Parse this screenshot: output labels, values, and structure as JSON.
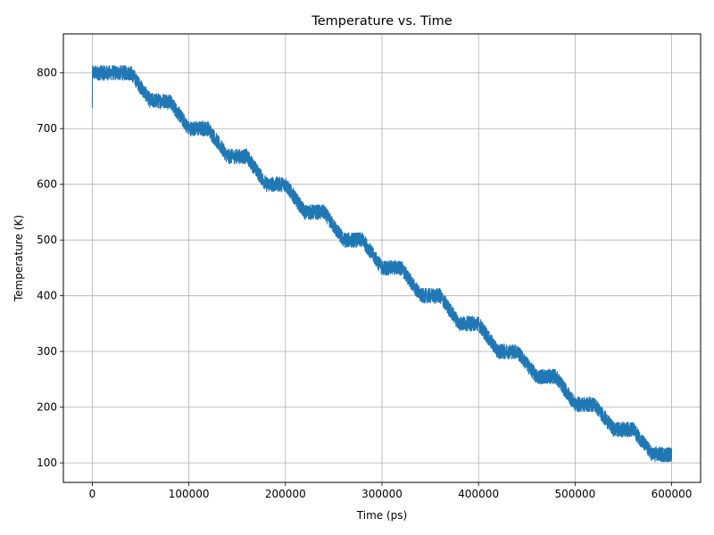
{
  "chart_data": {
    "type": "line",
    "title": "Temperature vs. Time",
    "xlabel": "Time (ps)",
    "ylabel": "Temperature (K)",
    "xlim": [
      -30000,
      630000
    ],
    "ylim": [
      65,
      870
    ],
    "xticks": [
      0,
      100000,
      200000,
      300000,
      400000,
      500000,
      600000
    ],
    "xtick_labels": [
      "0",
      "100000",
      "200000",
      "300000",
      "400000",
      "500000",
      "600000"
    ],
    "yticks": [
      100,
      200,
      300,
      400,
      500,
      600,
      700,
      800
    ],
    "ytick_labels": [
      "100",
      "200",
      "300",
      "400",
      "500",
      "600",
      "700",
      "800"
    ],
    "grid": true,
    "series_color": "#1f77b4",
    "series": [
      {
        "description_points": [
          {
            "x": 0,
            "y": 800
          },
          {
            "x": 40000,
            "y": 800
          },
          {
            "x": 60000,
            "y": 750
          },
          {
            "x": 80000,
            "y": 750
          },
          {
            "x": 100000,
            "y": 700
          },
          {
            "x": 120000,
            "y": 700
          },
          {
            "x": 140000,
            "y": 650
          },
          {
            "x": 160000,
            "y": 650
          },
          {
            "x": 180000,
            "y": 600
          },
          {
            "x": 200000,
            "y": 600
          },
          {
            "x": 220000,
            "y": 550
          },
          {
            "x": 240000,
            "y": 550
          },
          {
            "x": 260000,
            "y": 500
          },
          {
            "x": 280000,
            "y": 500
          },
          {
            "x": 300000,
            "y": 450
          },
          {
            "x": 320000,
            "y": 450
          },
          {
            "x": 340000,
            "y": 400
          },
          {
            "x": 360000,
            "y": 400
          },
          {
            "x": 380000,
            "y": 350
          },
          {
            "x": 400000,
            "y": 350
          },
          {
            "x": 420000,
            "y": 300
          },
          {
            "x": 440000,
            "y": 300
          },
          {
            "x": 460000,
            "y": 255
          },
          {
            "x": 480000,
            "y": 255
          },
          {
            "x": 500000,
            "y": 205
          },
          {
            "x": 520000,
            "y": 205
          },
          {
            "x": 540000,
            "y": 160
          },
          {
            "x": 560000,
            "y": 160
          },
          {
            "x": 580000,
            "y": 115
          },
          {
            "x": 600000,
            "y": 115
          }
        ],
        "noise_amplitude": 14
      }
    ]
  }
}
